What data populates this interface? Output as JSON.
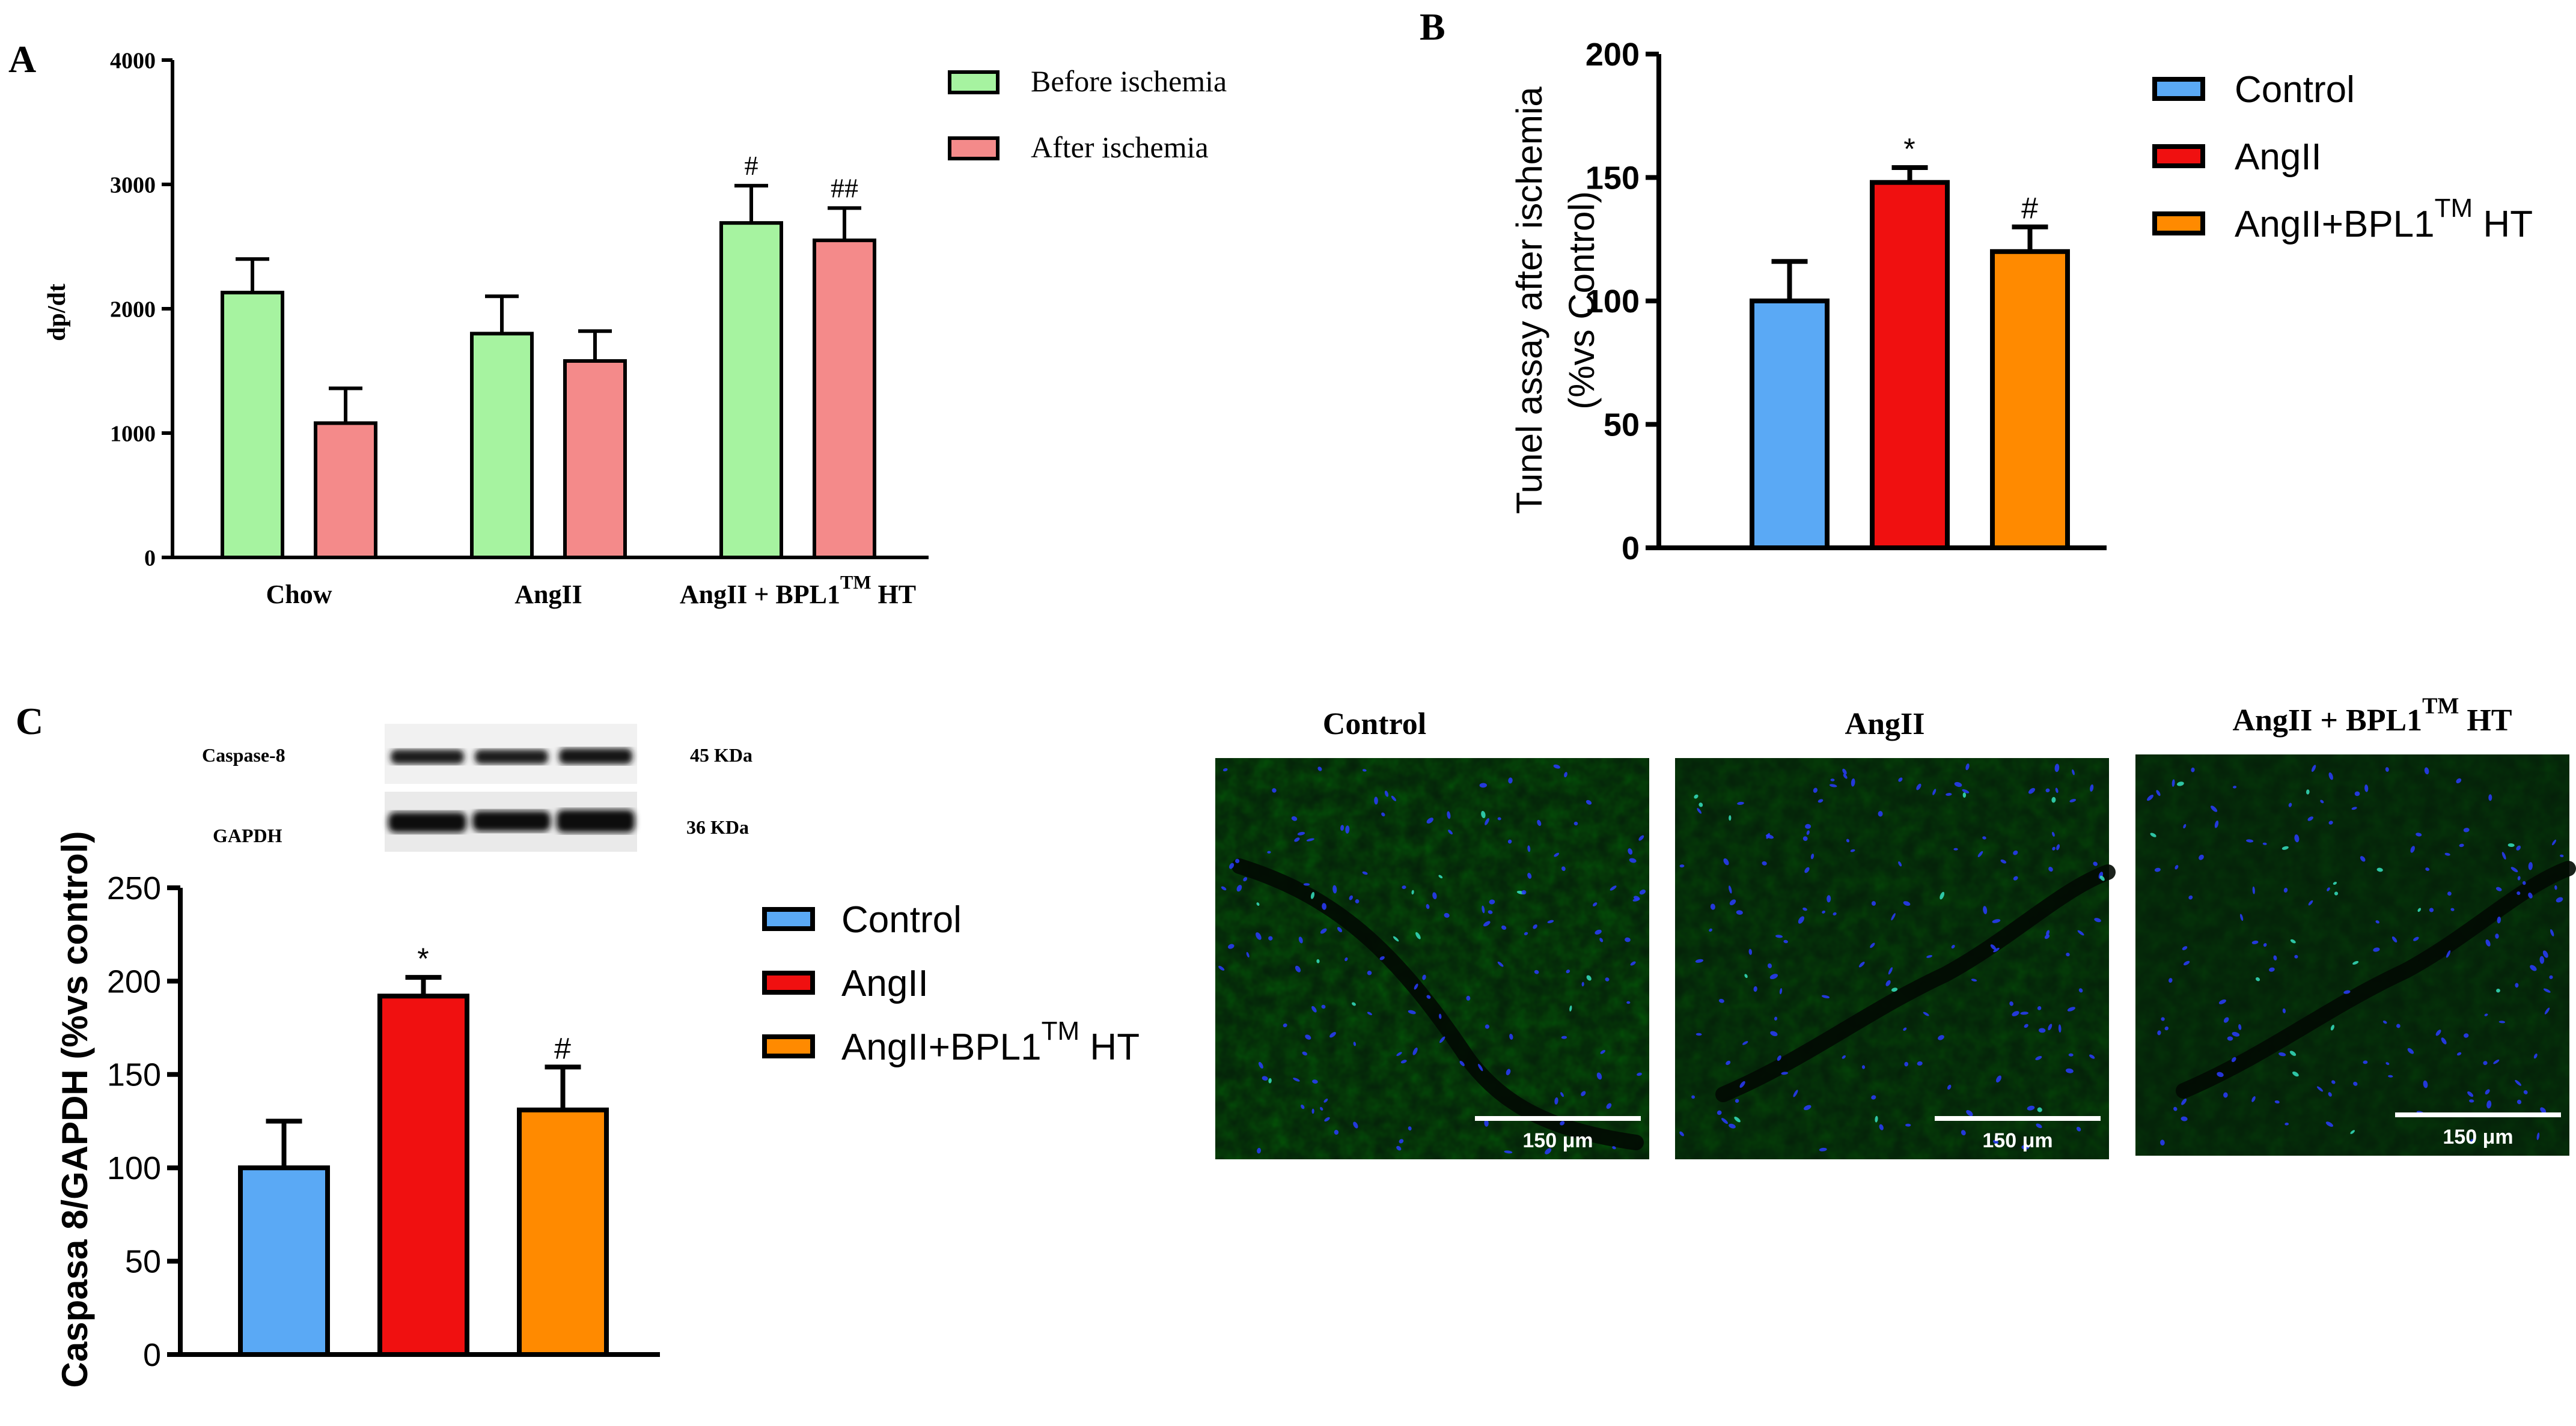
{
  "panels": {
    "A": {
      "letter": "A",
      "chart_data": {
        "type": "bar",
        "title": "",
        "xlabel": "",
        "ylabel": "dp/dt",
        "ylim": [
          0,
          4000
        ],
        "yticks": [
          0,
          1000,
          2000,
          3000,
          4000
        ],
        "categories": [
          "Chow",
          "AngII",
          "AngII + BPL1"
        ],
        "category_suffix": [
          "",
          "",
          "TM"
        ],
        "category_tail": [
          "",
          "",
          " HT"
        ],
        "series": [
          {
            "name": "Before ischemia",
            "color": "#a6f3a0",
            "values": [
              2130,
              1800,
              2690
            ],
            "errors": [
              270,
              300,
              300
            ],
            "annotations": [
              "",
              "",
              "#"
            ]
          },
          {
            "name": "After ischemia",
            "color": "#f48a8a",
            "values": [
              1080,
              1580,
              2550
            ],
            "errors": [
              280,
              240,
              260
            ],
            "annotations": [
              "",
              "",
              "##"
            ]
          }
        ],
        "legend_position": "top-right"
      }
    },
    "B": {
      "letter": "B",
      "chart_data": {
        "type": "bar",
        "title": "",
        "xlabel": "",
        "ylabel_line1": "Tunel assay after ischemia",
        "ylabel_line2": "(%vs Control)",
        "ylim": [
          0,
          200
        ],
        "yticks": [
          0,
          50,
          100,
          150,
          200
        ],
        "categories": [
          "Control",
          "AngII",
          "AngII+BPL1TM HT"
        ],
        "colors": [
          "#5aa9f5",
          "#f01010",
          "#ff8a00"
        ],
        "values": [
          100,
          148,
          120
        ],
        "errors": [
          16,
          6,
          10
        ],
        "annotations": [
          "",
          "*",
          "#"
        ],
        "legend": [
          {
            "label": "Control",
            "sup": "",
            "tail": ""
          },
          {
            "label": "AngII",
            "sup": "",
            "tail": ""
          },
          {
            "label": "AngII+BPL1",
            "sup": "TM",
            "tail": " HT"
          }
        ],
        "legend_position": "right"
      }
    },
    "C": {
      "letter": "C",
      "blot": {
        "protein1": "Caspase-8",
        "size1": "45 KDa",
        "protein2": "GAPDH",
        "size2": "36 KDa"
      },
      "chart_data": {
        "type": "bar",
        "title": "",
        "xlabel": "",
        "ylabel": "Caspasa 8/GAPDH (%vs control)",
        "ylim": [
          0,
          250
        ],
        "yticks": [
          0,
          50,
          100,
          150,
          200,
          250
        ],
        "categories": [
          "Control",
          "AngII",
          "AngII+BPL1TM HT"
        ],
        "colors": [
          "#5aa9f5",
          "#f01010",
          "#ff8a00"
        ],
        "values": [
          100,
          192,
          131
        ],
        "errors": [
          25,
          10,
          23
        ],
        "annotations": [
          "",
          "*",
          "#"
        ],
        "legend": [
          {
            "label": "Control",
            "sup": "",
            "tail": ""
          },
          {
            "label": "AngII",
            "sup": "",
            "tail": ""
          },
          {
            "label": "AngII+BPL1",
            "sup": "TM",
            "tail": " HT"
          }
        ],
        "legend_position": "right"
      },
      "micrographs": [
        {
          "title": "Control",
          "title_sup": "",
          "title_tail": "",
          "scale_bar": "150 μm"
        },
        {
          "title": "AngII",
          "title_sup": "",
          "title_tail": "",
          "scale_bar": "150 μm"
        },
        {
          "title": "AngII + BPL1",
          "title_sup": "TM",
          "title_tail": " HT",
          "scale_bar": "150 μm"
        }
      ]
    }
  }
}
